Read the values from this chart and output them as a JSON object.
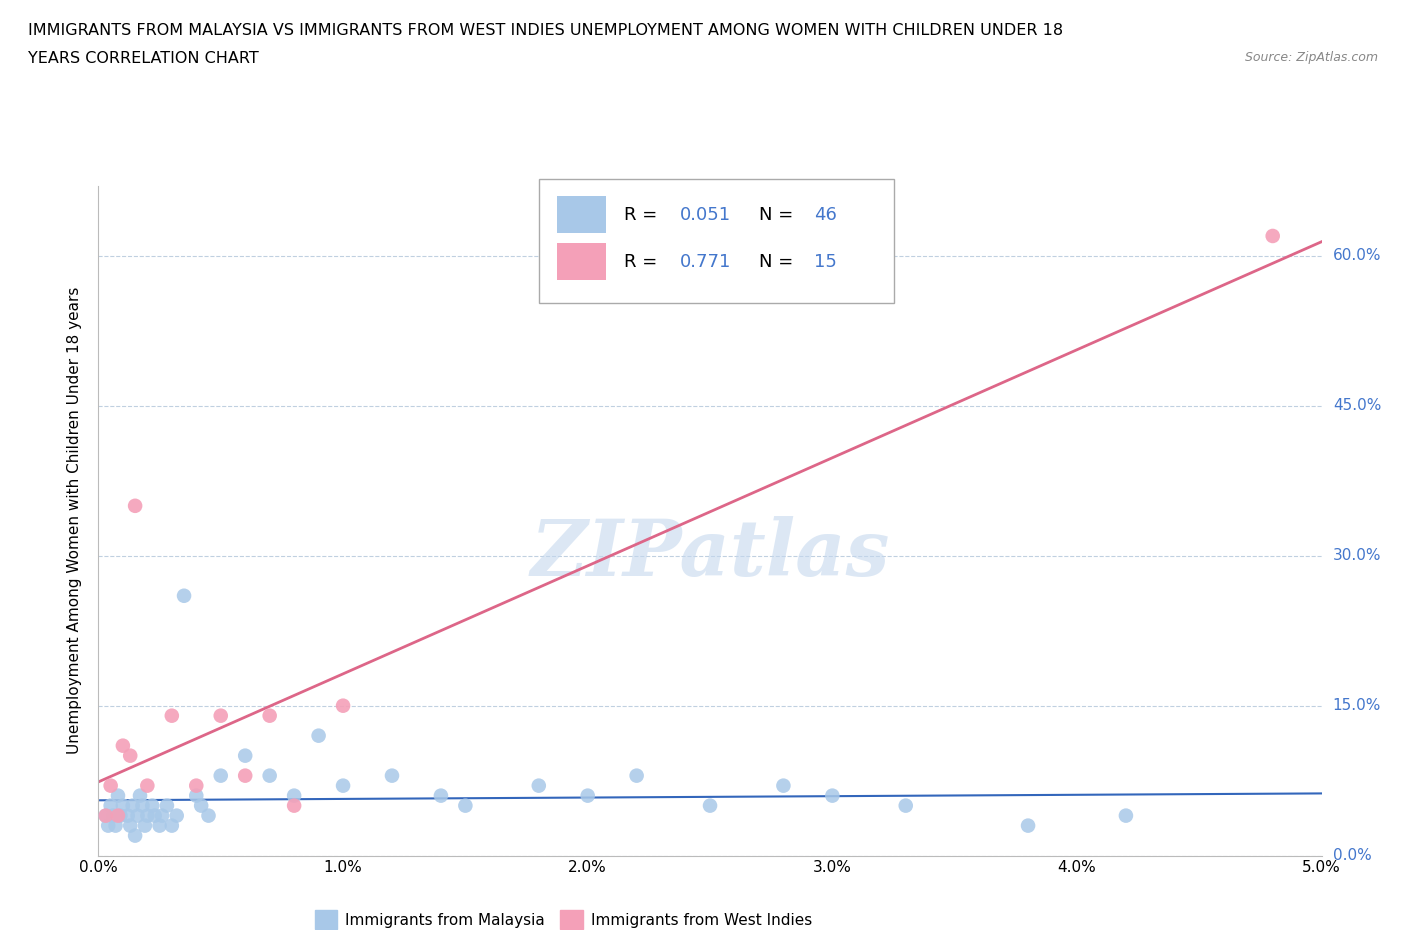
{
  "title_line1": "IMMIGRANTS FROM MALAYSIA VS IMMIGRANTS FROM WEST INDIES UNEMPLOYMENT AMONG WOMEN WITH CHILDREN UNDER 18",
  "title_line2": "YEARS CORRELATION CHART",
  "source": "Source: ZipAtlas.com",
  "ylabel": "Unemployment Among Women with Children Under 18 years",
  "watermark": "ZIPatlas",
  "legend_r1": "0.051",
  "legend_n1": "46",
  "legend_r2": "0.771",
  "legend_n2": "15",
  "malaysia_color": "#a8c8e8",
  "west_indies_color": "#f4a0b8",
  "malaysia_trend_color": "#3366bb",
  "west_indies_trend_color": "#dd6688",
  "grid_color": "#c0d0e0",
  "malaysia_x": [
    0.0003,
    0.0004,
    0.0005,
    0.0006,
    0.0007,
    0.0008,
    0.0009,
    0.001,
    0.0012,
    0.0013,
    0.0014,
    0.0015,
    0.0016,
    0.0017,
    0.0018,
    0.0019,
    0.002,
    0.0022,
    0.0023,
    0.0025,
    0.0026,
    0.0028,
    0.003,
    0.0032,
    0.0035,
    0.004,
    0.0042,
    0.0045,
    0.005,
    0.006,
    0.007,
    0.008,
    0.009,
    0.01,
    0.012,
    0.014,
    0.015,
    0.018,
    0.02,
    0.022,
    0.025,
    0.028,
    0.03,
    0.033,
    0.038,
    0.042
  ],
  "malaysia_y": [
    0.04,
    0.03,
    0.05,
    0.04,
    0.03,
    0.06,
    0.04,
    0.05,
    0.04,
    0.03,
    0.05,
    0.02,
    0.04,
    0.06,
    0.05,
    0.03,
    0.04,
    0.05,
    0.04,
    0.03,
    0.04,
    0.05,
    0.03,
    0.04,
    0.26,
    0.06,
    0.05,
    0.04,
    0.08,
    0.1,
    0.08,
    0.06,
    0.12,
    0.07,
    0.08,
    0.06,
    0.05,
    0.07,
    0.06,
    0.08,
    0.05,
    0.07,
    0.06,
    0.05,
    0.03,
    0.04
  ],
  "west_indies_x": [
    0.0003,
    0.0005,
    0.0008,
    0.001,
    0.0013,
    0.0015,
    0.002,
    0.003,
    0.004,
    0.005,
    0.006,
    0.007,
    0.008,
    0.01,
    0.048
  ],
  "west_indies_y": [
    0.04,
    0.07,
    0.04,
    0.11,
    0.1,
    0.35,
    0.07,
    0.14,
    0.07,
    0.14,
    0.08,
    0.14,
    0.05,
    0.15,
    0.62
  ],
  "xlim": [
    0.0,
    0.05
  ],
  "ylim": [
    0.0,
    0.67
  ],
  "xticks": [
    0.0,
    0.01,
    0.02,
    0.03,
    0.04,
    0.05
  ],
  "yticks": [
    0.0,
    0.15,
    0.3,
    0.45,
    0.6
  ],
  "ytick_labels": [
    "0.0%",
    "15.0%",
    "30.0%",
    "45.0%",
    "60.0%"
  ],
  "xtick_labels": [
    "0.0%",
    "1.0%",
    "2.0%",
    "3.0%",
    "4.0%",
    "5.0%"
  ],
  "blue_color": "#4477cc",
  "label_malaysia": "Immigrants from Malaysia",
  "label_west_indies": "Immigrants from West Indies"
}
